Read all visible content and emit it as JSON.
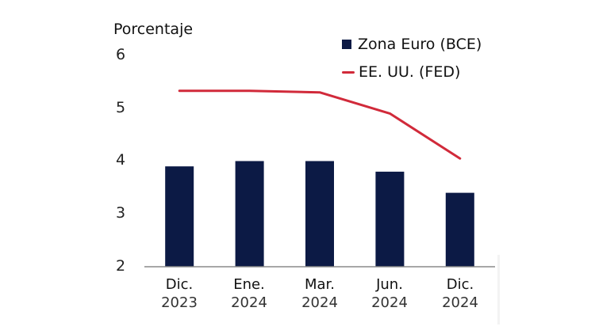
{
  "chart_data": {
    "type": "bar",
    "title": "",
    "xlabel": "",
    "ylabel": "Porcentaje",
    "ylim": [
      2,
      6
    ],
    "yticks": [
      6,
      5,
      4,
      3,
      2
    ],
    "grid": false,
    "legend_position": "top-right",
    "categories": [
      {
        "month": "Dic.",
        "year": "2023"
      },
      {
        "month": "Ene.",
        "year": "2024"
      },
      {
        "month": "Mar.",
        "year": "2024"
      },
      {
        "month": "Jun.",
        "year": "2024"
      },
      {
        "month": "Dic.",
        "year": "2024"
      }
    ],
    "series": [
      {
        "name": "Zona Euro (BCE)",
        "kind": "bar",
        "color": "#0c1a45",
        "values": [
          3.9,
          4.0,
          4.0,
          3.8,
          3.4
        ]
      },
      {
        "name": "EE. UU. (FED)",
        "kind": "line",
        "color": "#d12a3a",
        "values": [
          5.33,
          5.33,
          5.3,
          4.9,
          4.05
        ]
      }
    ]
  },
  "legend": {
    "items": [
      {
        "label": "Zona Euro (BCE)",
        "color": "#0c1a45"
      },
      {
        "label": "EE. UU. (FED)",
        "color": "#d12a3a"
      }
    ]
  },
  "axis": {
    "y_title": "Porcentaje",
    "y_ticks": [
      "6",
      "5",
      "4",
      "3",
      "2"
    ]
  }
}
